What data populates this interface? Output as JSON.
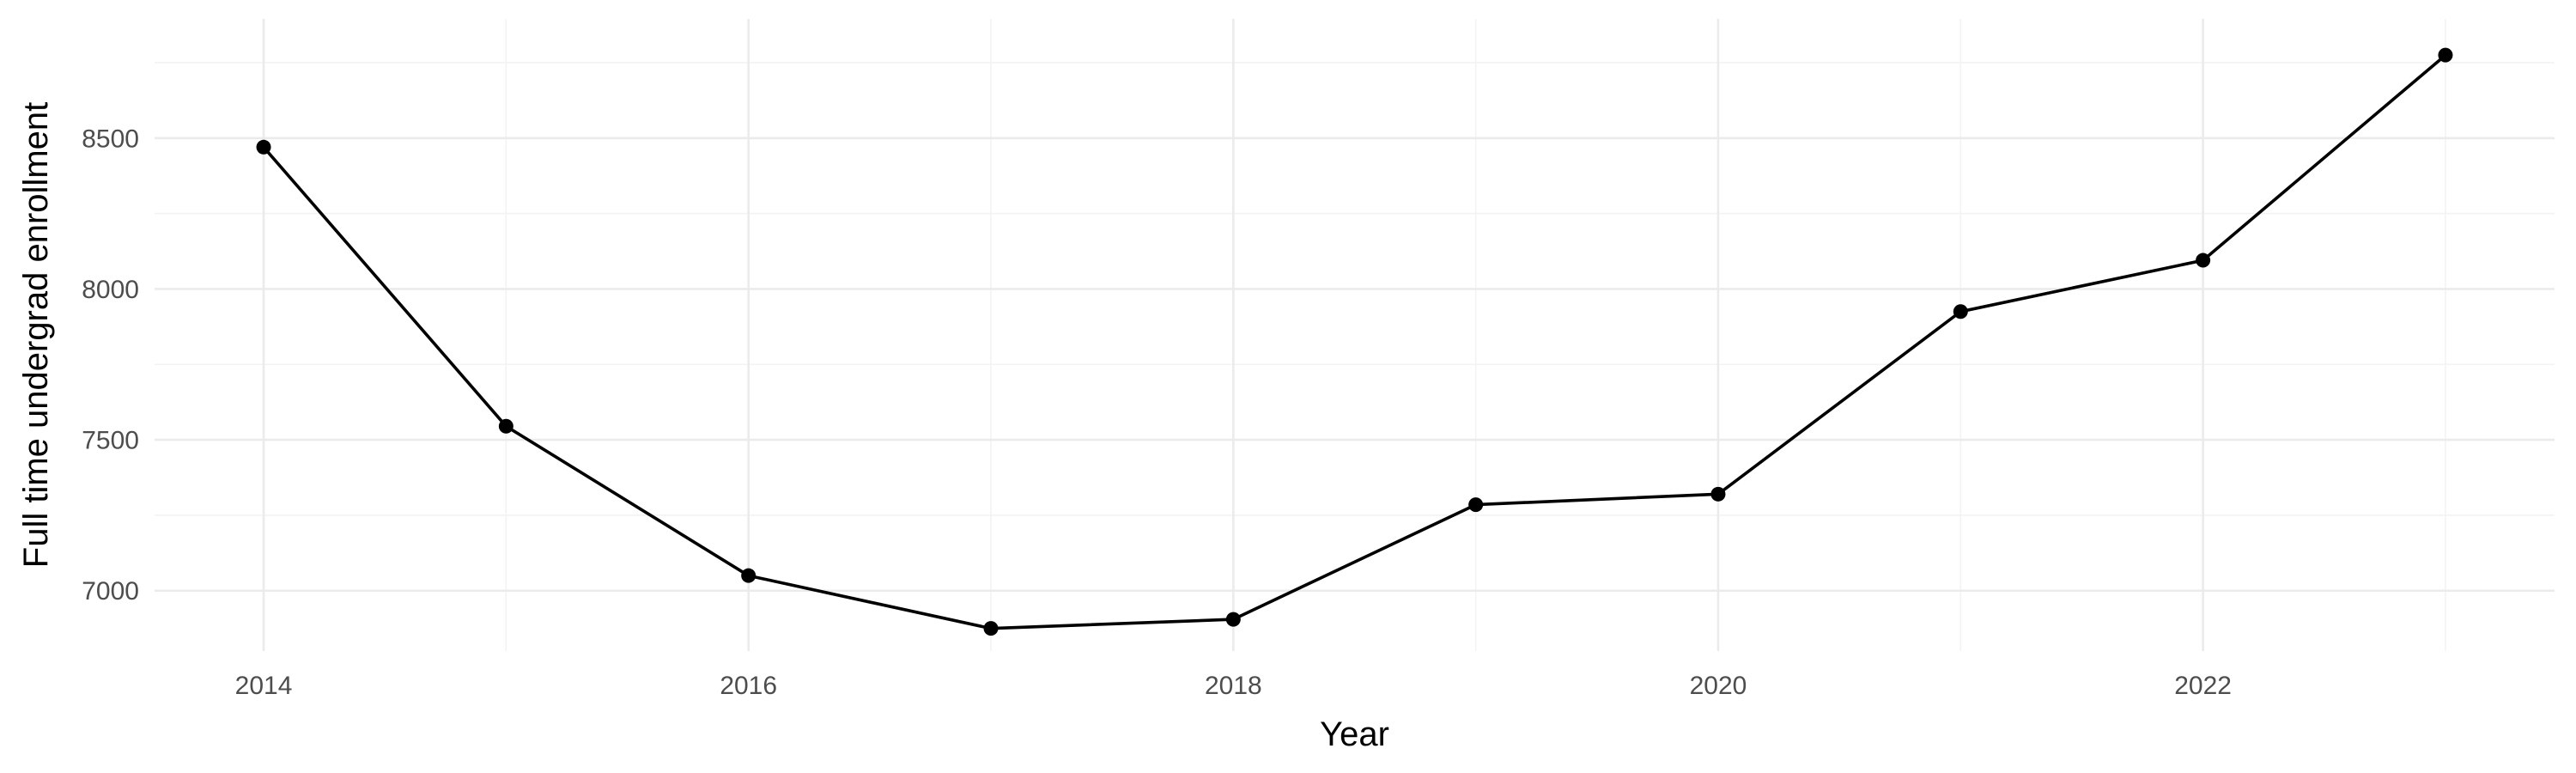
{
  "chart_data": {
    "type": "line",
    "xlabel": "Year",
    "ylabel": "Full time undergrad enrollment",
    "x": [
      2014,
      2015,
      2016,
      2017,
      2018,
      2019,
      2020,
      2021,
      2022,
      2023
    ],
    "series": [
      {
        "values": [
          8470,
          7545,
          7050,
          6875,
          6905,
          7285,
          7320,
          7925,
          8095,
          8775
        ]
      }
    ],
    "xlim": [
      2013.55,
      2023.45
    ],
    "ylim": [
      6800,
      8895
    ],
    "x_ticks": [
      2014,
      2016,
      2018,
      2020,
      2022
    ],
    "x_tick_labels": [
      "2014",
      "2016",
      "2018",
      "2020",
      "2022"
    ],
    "x_minor_ticks": [
      2015,
      2017,
      2019,
      2021,
      2023
    ],
    "y_ticks": [
      7000,
      7500,
      8000,
      8500
    ],
    "y_tick_labels": [
      "7000",
      "7500",
      "8000",
      "8500"
    ],
    "y_minor_ticks": [
      7250,
      7750,
      8250,
      8750
    ],
    "grid": true,
    "legend": "none",
    "colors": {
      "line": "#000000",
      "point": "#000000",
      "grid_major": "#ebebeb",
      "grid_minor": "#f3f3f3"
    }
  }
}
